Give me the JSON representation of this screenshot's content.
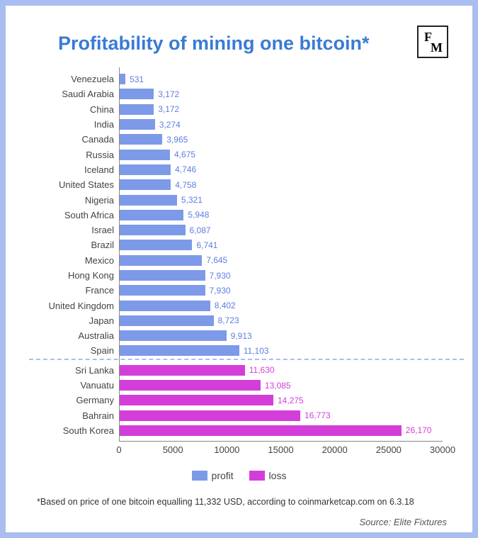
{
  "logo": {
    "top": "F",
    "bottom": "M"
  },
  "title": "Profitability of mining one bitcoin*",
  "title_color": "#3a7bd5",
  "chart": {
    "type": "bar-horizontal",
    "xlim": [
      0,
      30000
    ],
    "xtick_step": 5000,
    "xticks": [
      "0",
      "5000",
      "10000",
      "15000",
      "20000",
      "25000",
      "30000"
    ],
    "label_fontsize": 13,
    "value_fontsize": 12,
    "profit_color": "#7d9ae8",
    "loss_color": "#d43ed8",
    "value_color_profit": "#5d7fe0",
    "value_color_loss": "#d43ed8",
    "divider_after_index": 18,
    "divider_color": "#a9bdf0",
    "axis_color": "#888",
    "text_color": "#444",
    "rows": [
      {
        "label": "Venezuela",
        "value": 531,
        "value_text": "531",
        "group": "profit"
      },
      {
        "label": "Saudi Arabia",
        "value": 3172,
        "value_text": "3,172",
        "group": "profit"
      },
      {
        "label": "China",
        "value": 3172,
        "value_text": "3,172",
        "group": "profit"
      },
      {
        "label": "India",
        "value": 3274,
        "value_text": "3,274",
        "group": "profit"
      },
      {
        "label": "Canada",
        "value": 3965,
        "value_text": "3,965",
        "group": "profit"
      },
      {
        "label": "Russia",
        "value": 4675,
        "value_text": "4,675",
        "group": "profit"
      },
      {
        "label": "Iceland",
        "value": 4746,
        "value_text": "4,746",
        "group": "profit"
      },
      {
        "label": "United States",
        "value": 4758,
        "value_text": "4,758",
        "group": "profit"
      },
      {
        "label": "Nigeria",
        "value": 5321,
        "value_text": "5,321",
        "group": "profit"
      },
      {
        "label": "South Africa",
        "value": 5948,
        "value_text": "5,948",
        "group": "profit"
      },
      {
        "label": "Israel",
        "value": 6087,
        "value_text": "6,087",
        "group": "profit"
      },
      {
        "label": "Brazil",
        "value": 6741,
        "value_text": "6,741",
        "group": "profit"
      },
      {
        "label": "Mexico",
        "value": 7645,
        "value_text": "7,645",
        "group": "profit"
      },
      {
        "label": "Hong Kong",
        "value": 7930,
        "value_text": "7,930",
        "group": "profit"
      },
      {
        "label": "France",
        "value": 7930,
        "value_text": "7,930",
        "group": "profit"
      },
      {
        "label": "United Kingdom",
        "value": 8402,
        "value_text": "8,402",
        "group": "profit"
      },
      {
        "label": "Japan",
        "value": 8723,
        "value_text": "8,723",
        "group": "profit"
      },
      {
        "label": "Australia",
        "value": 9913,
        "value_text": "9,913",
        "group": "profit"
      },
      {
        "label": "Spain",
        "value": 11103,
        "value_text": "11,103",
        "group": "profit"
      },
      {
        "label": "Sri Lanka",
        "value": 11630,
        "value_text": "11,630",
        "group": "loss"
      },
      {
        "label": "Vanuatu",
        "value": 13085,
        "value_text": "13,085",
        "group": "loss"
      },
      {
        "label": "Germany",
        "value": 14275,
        "value_text": "14,275",
        "group": "loss"
      },
      {
        "label": "Bahrain",
        "value": 16773,
        "value_text": "16,773",
        "group": "loss"
      },
      {
        "label": "South Korea",
        "value": 26170,
        "value_text": "26,170",
        "group": "loss"
      }
    ]
  },
  "legend": {
    "items": [
      {
        "label": "profit",
        "color": "#7d9ae8"
      },
      {
        "label": "loss",
        "color": "#d43ed8"
      }
    ]
  },
  "footnote": "*Based on price of one bitcoin equalling 11,332 USD, according to coinmarketcap.com on 6.3.18",
  "source": "Source: Elite Fixtures"
}
